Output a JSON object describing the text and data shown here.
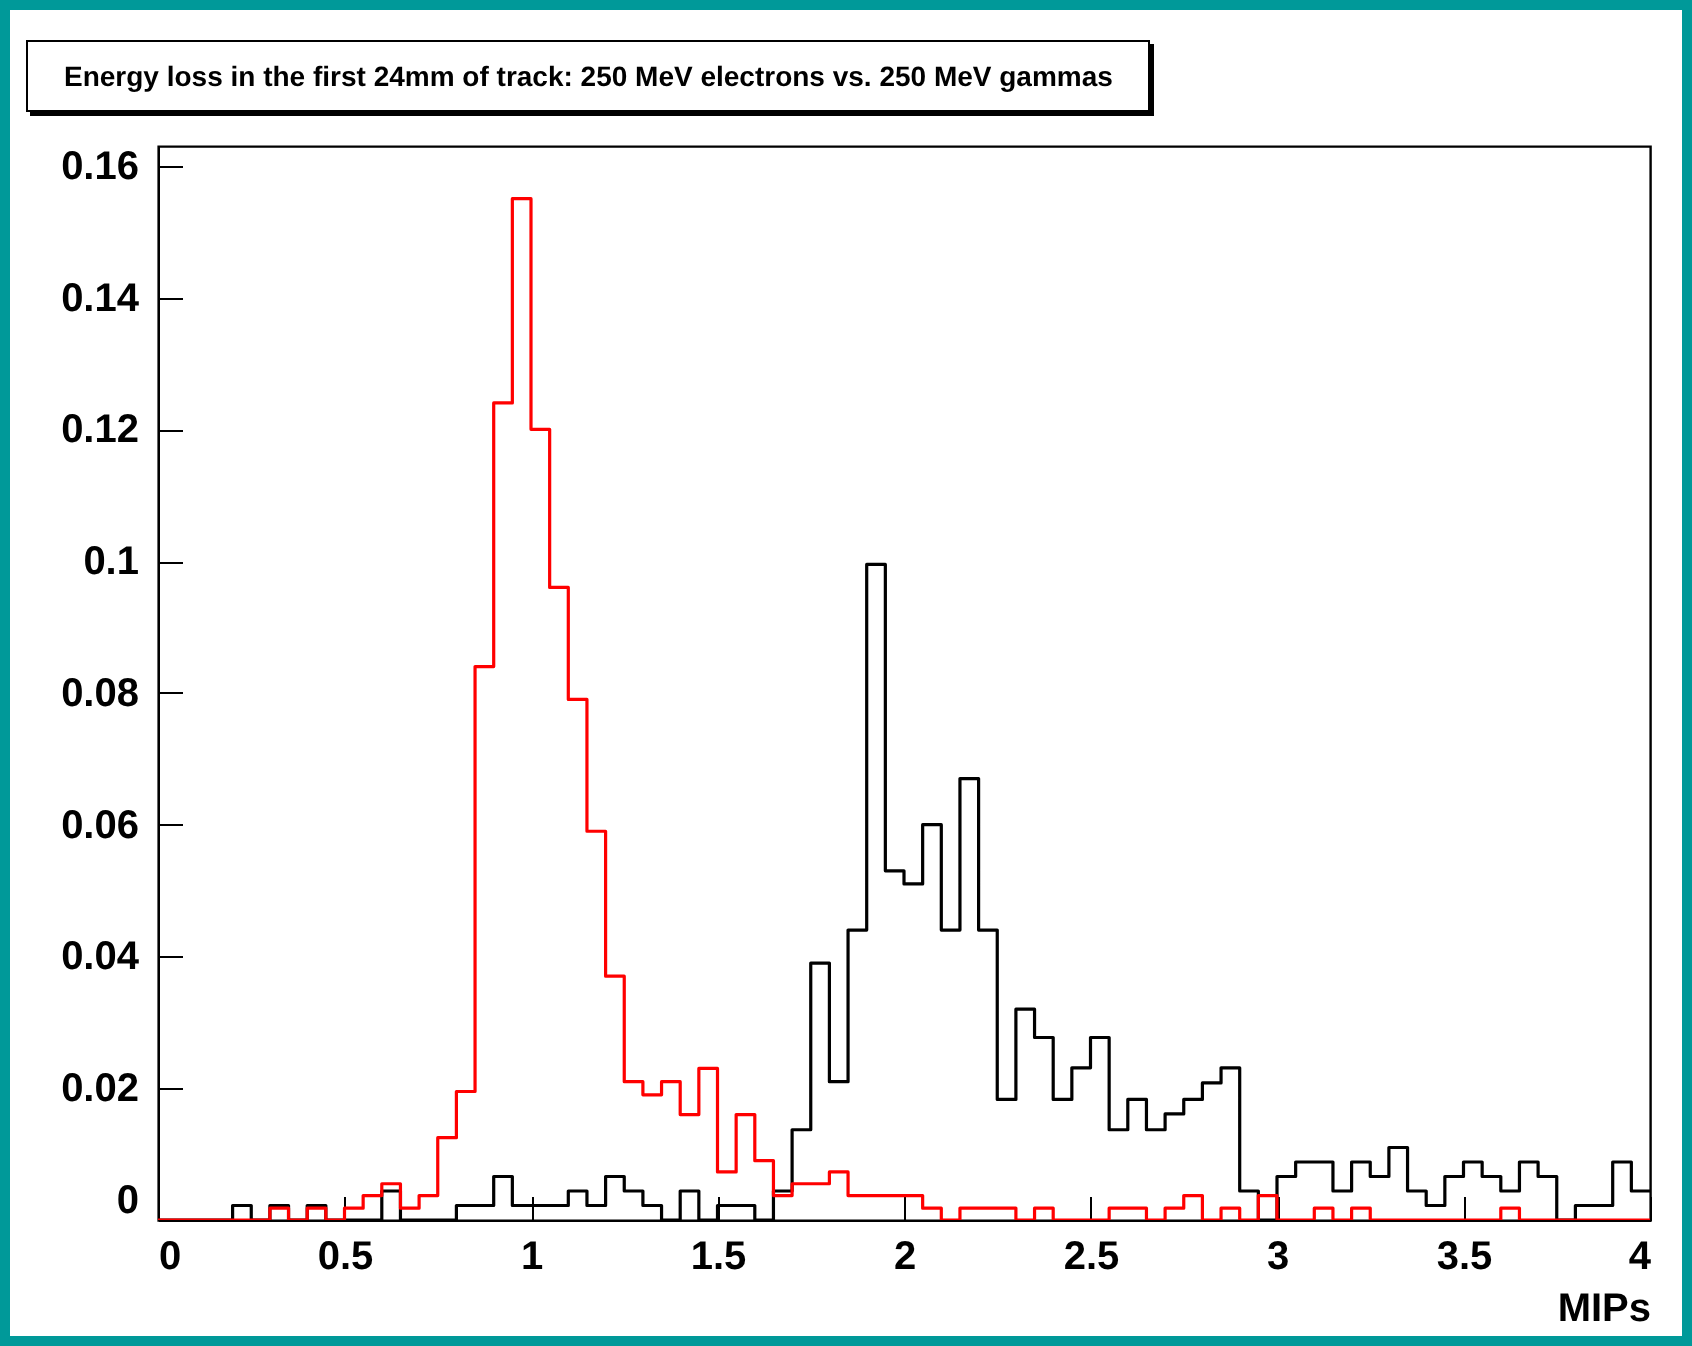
{
  "chart_data": {
    "type": "histogram",
    "title": "Energy loss in the first 24mm of track: 250 MeV electrons vs. 250 MeV gammas",
    "xlabel": "MIPs",
    "bins": [
      0,
      0.05,
      0.1,
      0.15,
      0.2,
      0.25,
      0.3,
      0.35,
      0.4,
      0.45,
      0.5,
      0.55,
      0.6,
      0.65,
      0.7,
      0.75,
      0.8,
      0.85,
      0.9,
      0.95,
      1,
      1.05,
      1.1,
      1.15,
      1.2,
      1.25,
      1.3,
      1.35,
      1.4,
      1.45,
      1.5,
      1.55,
      1.6,
      1.65,
      1.7,
      1.75,
      1.8,
      1.85,
      1.9,
      1.95,
      2,
      2.05,
      2.1,
      2.15,
      2.2,
      2.25,
      2.3,
      2.35,
      2.4,
      2.45,
      2.5,
      2.55,
      2.6,
      2.65,
      2.7,
      2.75,
      2.8,
      2.85,
      2.9,
      2.95,
      3,
      3.05,
      3.1,
      3.15,
      3.2,
      3.25,
      3.3,
      3.35,
      3.4,
      3.45,
      3.5,
      3.55,
      3.6,
      3.65,
      3.7,
      3.75,
      3.8,
      3.85,
      3.9,
      3.95,
      4
    ],
    "series": [
      {
        "color": "#000000",
        "values": [
          0,
          0,
          0,
          0,
          0.0022,
          0,
          0.0022,
          0,
          0.0022,
          0,
          0,
          0,
          0.0044,
          0,
          0,
          0,
          0.0022,
          0.0022,
          0.0066,
          0.0022,
          0.0022,
          0.0022,
          0.0044,
          0.0022,
          0.0066,
          0.0044,
          0.0022,
          0,
          0.0044,
          0,
          0.0022,
          0.0022,
          0,
          0.0044,
          0.0137,
          0.039,
          0.021,
          0.044,
          0.0995,
          0.053,
          0.051,
          0.06,
          0.044,
          0.067,
          0.044,
          0.0183,
          0.032,
          0.0277,
          0.0183,
          0.0231,
          0.0277,
          0.0137,
          0.0183,
          0.0137,
          0.0161,
          0.0183,
          0.0208,
          0.0231,
          0.0044,
          0,
          0.0066,
          0.0088,
          0.0088,
          0.0044,
          0.0088,
          0.0066,
          0.011,
          0.0044,
          0.0022,
          0.0066,
          0.0088,
          0.0066,
          0.0044,
          0.0088,
          0.0066,
          0,
          0.0022,
          0.0022,
          0.0088,
          0.0044
        ]
      },
      {
        "color": "#ff0000",
        "values": [
          0,
          0,
          0,
          0,
          0,
          0,
          0.0018,
          0,
          0.0018,
          0,
          0.0018,
          0.0037,
          0.0055,
          0.0018,
          0.0037,
          0.0125,
          0.0195,
          0.084,
          0.124,
          0.155,
          0.12,
          0.096,
          0.079,
          0.059,
          0.037,
          0.021,
          0.019,
          0.021,
          0.016,
          0.023,
          0.0073,
          0.016,
          0.009,
          0.0037,
          0.0055,
          0.0055,
          0.0073,
          0.0037,
          0.0037,
          0.0037,
          0.0037,
          0.0018,
          0,
          0.0018,
          0.0018,
          0.0018,
          0,
          0.0018,
          0,
          0,
          0,
          0.0018,
          0.0018,
          0,
          0.0018,
          0.0037,
          0,
          0.0018,
          0,
          0.0037,
          0,
          0,
          0.0018,
          0,
          0.0018,
          0,
          0,
          0,
          0,
          0,
          0,
          0,
          0.0018,
          0,
          0,
          0,
          0,
          0,
          0,
          0
        ]
      }
    ],
    "xlim": [
      0,
      4
    ],
    "xticks": [
      0,
      0.5,
      1,
      1.5,
      2,
      2.5,
      3,
      3.5,
      4
    ],
    "ylim": [
      0,
      0.163
    ],
    "yticks": [
      0,
      0.02,
      0.04,
      0.06,
      0.08,
      0.1,
      0.12,
      0.14,
      0.16
    ]
  }
}
